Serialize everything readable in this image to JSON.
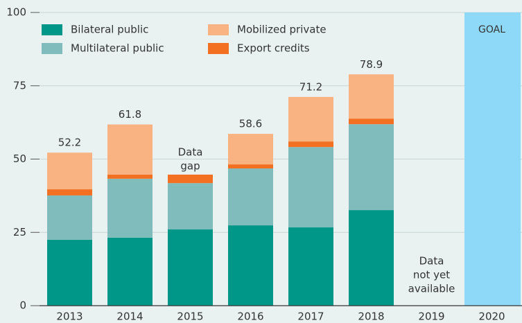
{
  "chart_data": {
    "type": "stacked_bar",
    "categories": [
      "2013",
      "2014",
      "2015",
      "2016",
      "2017",
      "2018",
      "2019",
      "2020"
    ],
    "series": [
      {
        "name": "Bilateral public",
        "color": "#009688",
        "values": [
          22.5,
          23.2,
          26.0,
          27.4,
          26.7,
          32.6,
          null,
          null
        ]
      },
      {
        "name": "Multilateral public",
        "color": "#80bcbc",
        "values": [
          15.1,
          20.1,
          15.8,
          19.4,
          27.4,
          29.3,
          null,
          null
        ]
      },
      {
        "name": "Export credits",
        "color": "#f36f21",
        "values": [
          2.1,
          1.4,
          2.9,
          1.4,
          1.9,
          1.9,
          null,
          null
        ]
      },
      {
        "name": "Mobilized private",
        "color": "#f9b383",
        "values": [
          12.5,
          17.1,
          null,
          10.4,
          15.2,
          15.1,
          null,
          null
        ]
      }
    ],
    "totals": [
      52.2,
      61.8,
      null,
      58.6,
      71.2,
      78.9,
      null,
      null
    ],
    "goal": {
      "category_index": 7,
      "value": 100,
      "label": "GOAL",
      "color": "#8ed8f8"
    },
    "annotations": [
      {
        "category_index": 2,
        "lines": [
          "Data",
          "gap"
        ]
      },
      {
        "category_index": 6,
        "lines": [
          "Data",
          "not yet",
          "available"
        ]
      }
    ],
    "ylim": [
      0,
      100
    ],
    "yticks": [
      0,
      25,
      50,
      75,
      100
    ],
    "grid": true
  }
}
